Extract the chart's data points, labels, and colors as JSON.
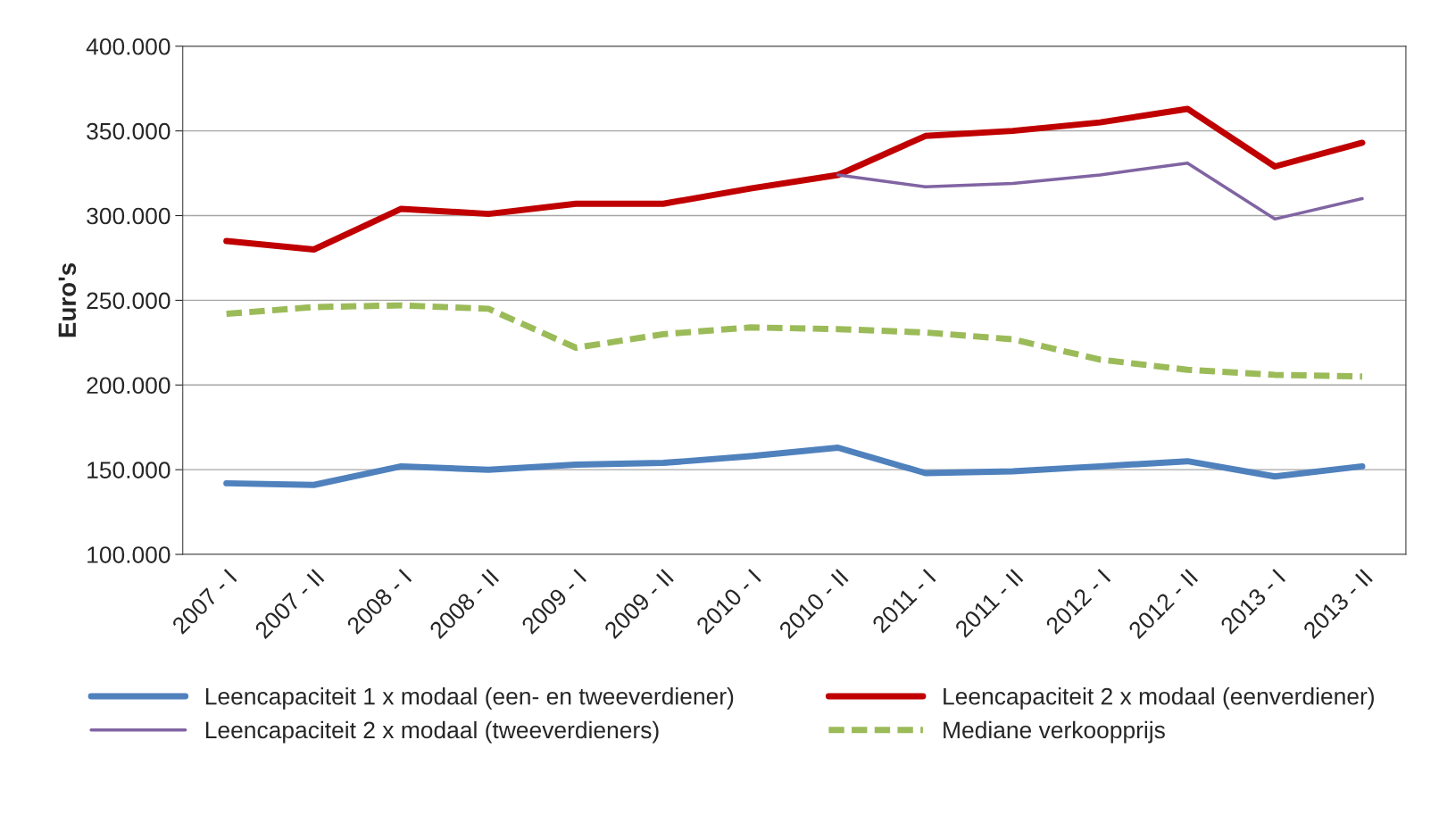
{
  "chart_data": {
    "type": "line",
    "ylabel": "Euro's",
    "categories": [
      "2007 - I",
      "2007 - II",
      "2008 - I",
      "2008 - II",
      "2009 - I",
      "2009 - II",
      "2010 - I",
      "2010 - II",
      "2011 - I",
      "2011 - II",
      "2012 - I",
      "2012 - II",
      "2013 - I",
      "2013 - II"
    ],
    "series": [
      {
        "name": "Leencapaciteit 1 x modaal (een- en tweeverdiener)",
        "color": "#4f81bd",
        "line_style": "solid",
        "values": [
          142000,
          141000,
          152000,
          150000,
          153000,
          154000,
          158000,
          163000,
          148000,
          149000,
          152000,
          155000,
          146000,
          152000
        ]
      },
      {
        "name": "Leencapaciteit 2 x modaal (eenverdiener)",
        "color": "#c00000",
        "line_style": "solid",
        "values": [
          285000,
          280000,
          304000,
          301000,
          307000,
          307000,
          316000,
          324000,
          347000,
          350000,
          355000,
          363000,
          329000,
          343000
        ]
      },
      {
        "name": "Leencapaciteit 2 x modaal (tweeverdieners)",
        "color": "#8064a2",
        "line_style": "solid",
        "values": [
          null,
          null,
          null,
          null,
          null,
          null,
          null,
          324000,
          317000,
          319000,
          324000,
          331000,
          298000,
          310000
        ]
      },
      {
        "name": "Mediane verkoopprijs",
        "color": "#9bbb59",
        "line_style": "dashed",
        "values": [
          242000,
          246000,
          247000,
          245000,
          222000,
          230000,
          234000,
          233000,
          231000,
          227000,
          215000,
          209000,
          206000,
          205000
        ]
      }
    ],
    "ylim": [
      100000,
      400000
    ],
    "yticks": [
      {
        "value": 100000,
        "label": "100.000"
      },
      {
        "value": 150000,
        "label": "150.000"
      },
      {
        "value": 200000,
        "label": "200.000"
      },
      {
        "value": 250000,
        "label": "250.000"
      },
      {
        "value": 300000,
        "label": "300.000"
      },
      {
        "value": 350000,
        "label": "350.000"
      },
      {
        "value": 400000,
        "label": "400.000"
      }
    ],
    "grid": "y",
    "legend": "bottom",
    "marker": "none"
  }
}
